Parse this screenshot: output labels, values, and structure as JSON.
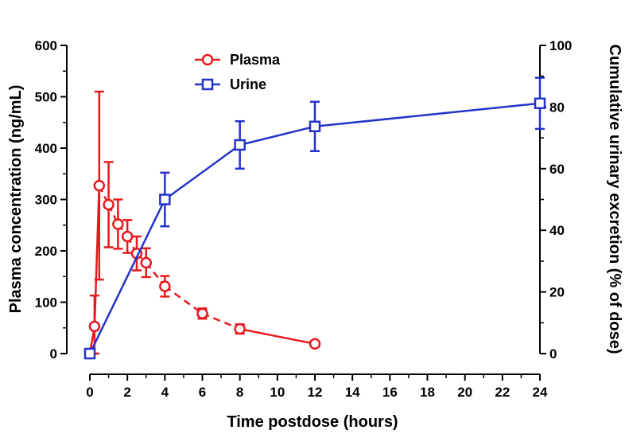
{
  "chart_data": {
    "type": "line",
    "xlabel": "Time postdose (hours)",
    "ylabel_left": "Plasma concentration (ng/mL)",
    "ylabel_right": "Cumulative urinary excretion (% of dose)",
    "xlim": [
      0,
      24
    ],
    "ylim_left": [
      0,
      600
    ],
    "ylim_right": [
      0,
      100
    ],
    "x_ticks": [
      "0",
      "2",
      "4",
      "6",
      "8",
      "10",
      "12",
      "14",
      "16",
      "18",
      "20",
      "22",
      "24"
    ],
    "y_left_ticks": [
      "0",
      "100",
      "200",
      "300",
      "400",
      "500",
      "600"
    ],
    "y_right_ticks": [
      "0",
      "20",
      "40",
      "60",
      "80",
      "100"
    ],
    "grid": false,
    "legend_position": "top-center",
    "series": [
      {
        "name": "Plasma",
        "axis": "left",
        "marker": "circle",
        "color": "#e8191d",
        "line_style": "dashed-solid",
        "x": [
          0,
          0.25,
          0.5,
          1,
          1.5,
          2,
          2.5,
          3,
          4,
          6,
          8,
          12
        ],
        "values": [
          0,
          53,
          327,
          290,
          252,
          228,
          195,
          177,
          131,
          78,
          48,
          19
        ],
        "errors": [
          0,
          60,
          183,
          83,
          48,
          32,
          33,
          28,
          20,
          10,
          9,
          2
        ]
      },
      {
        "name": "Urine",
        "axis": "right",
        "marker": "square",
        "color": "#2433c9",
        "line_style": "solid",
        "x": [
          0,
          4,
          8,
          12,
          24
        ],
        "values": [
          0,
          50,
          67.7,
          73.7,
          81.2
        ],
        "errors": [
          0,
          8.7,
          7.7,
          8.0,
          8.3
        ]
      }
    ]
  }
}
